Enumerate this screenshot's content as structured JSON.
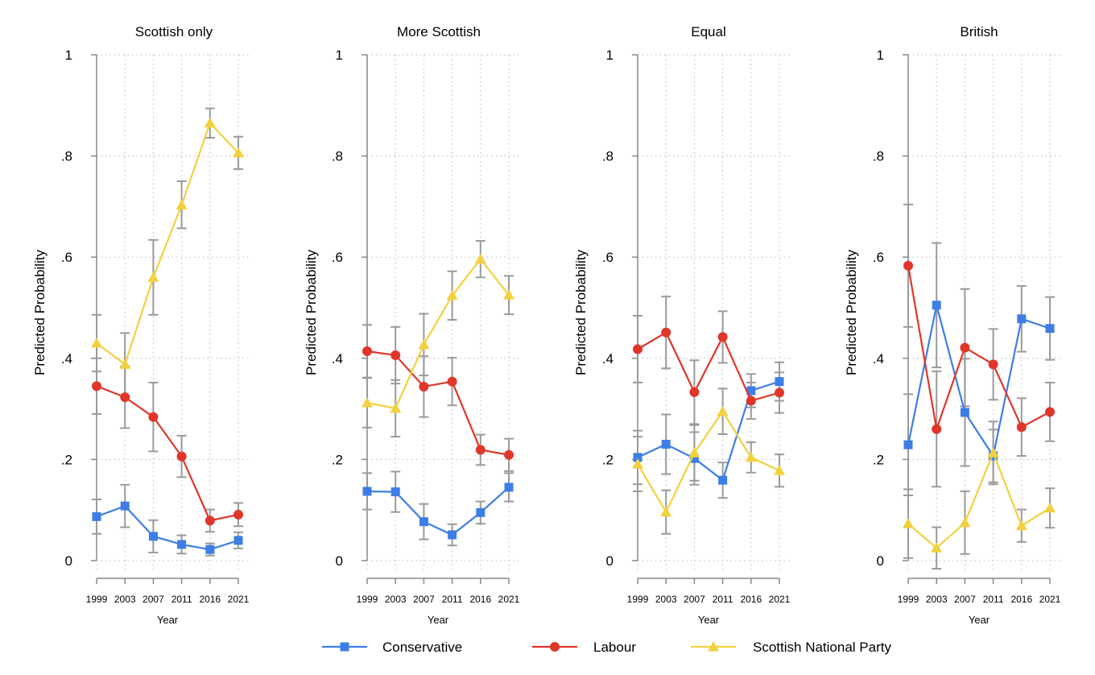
{
  "chart_data": {
    "type": "line",
    "x": [
      1999,
      2003,
      2007,
      2011,
      2016,
      2021
    ],
    "x_tick_labels": [
      "1999",
      "2003",
      "2007",
      "2011",
      "2016",
      "2021"
    ],
    "xlabel": "Year",
    "ylabel": "Predicted Probability",
    "ylim": [
      0,
      1
    ],
    "y_ticks": [
      0,
      0.2,
      0.4,
      0.6,
      0.8,
      1
    ],
    "y_tick_labels": [
      "0",
      ".2",
      ".4",
      ".6",
      ".8",
      "1"
    ],
    "grid": true,
    "error_bars": true,
    "series_styles": [
      {
        "name": "Conservative",
        "color": "#3d7ee6",
        "marker": "square"
      },
      {
        "name": "Labour",
        "color": "#e0362a",
        "marker": "circle"
      },
      {
        "name": "Scottish National Party",
        "color": "#f2d13f",
        "marker": "triangle"
      }
    ],
    "legend": {
      "position": "bottom",
      "entries": [
        "Conservative",
        "Labour",
        "Scottish National Party"
      ]
    },
    "panels": [
      {
        "title": "Scottish only",
        "series": [
          {
            "name": "Conservative",
            "values": [
              0.087,
              0.108,
              0.048,
              0.032,
              0.022,
              0.04
            ],
            "lower": [
              0.053,
              0.066,
              0.016,
              0.014,
              0.01,
              0.024
            ],
            "upper": [
              0.121,
              0.15,
              0.08,
              0.05,
              0.034,
              0.056
            ]
          },
          {
            "name": "Labour",
            "values": [
              0.345,
              0.323,
              0.284,
              0.206,
              0.079,
              0.091
            ],
            "lower": [
              0.29,
              0.262,
              0.216,
              0.165,
              0.057,
              0.068
            ],
            "upper": [
              0.4,
              0.384,
              0.352,
              0.247,
              0.101,
              0.114
            ]
          },
          {
            "name": "Scottish National Party",
            "values": [
              0.43,
              0.388,
              0.56,
              0.703,
              0.865,
              0.806
            ],
            "lower": [
              0.374,
              0.326,
              0.486,
              0.657,
              0.836,
              0.774
            ],
            "upper": [
              0.486,
              0.45,
              0.634,
              0.75,
              0.894,
              0.838
            ]
          }
        ]
      },
      {
        "title": "More Scottish",
        "series": [
          {
            "name": "Conservative",
            "values": [
              0.137,
              0.136,
              0.077,
              0.051,
              0.095,
              0.145
            ],
            "lower": [
              0.101,
              0.096,
              0.042,
              0.03,
              0.073,
              0.117
            ],
            "upper": [
              0.173,
              0.176,
              0.112,
              0.072,
              0.117,
              0.173
            ]
          },
          {
            "name": "Labour",
            "values": [
              0.414,
              0.406,
              0.344,
              0.354,
              0.219,
              0.209
            ],
            "lower": [
              0.362,
              0.35,
              0.284,
              0.307,
              0.189,
              0.177
            ],
            "upper": [
              0.466,
              0.462,
              0.404,
              0.401,
              0.249,
              0.241
            ]
          },
          {
            "name": "Scottish National Party",
            "values": [
              0.312,
              0.301,
              0.427,
              0.524,
              0.596,
              0.525
            ],
            "lower": [
              0.263,
              0.245,
              0.366,
              0.476,
              0.56,
              0.487
            ],
            "upper": [
              0.361,
              0.357,
              0.488,
              0.572,
              0.632,
              0.563
            ]
          }
        ]
      },
      {
        "title": "Equal",
        "series": [
          {
            "name": "Conservative",
            "values": [
              0.204,
              0.23,
              0.202,
              0.159,
              0.336,
              0.354
            ],
            "lower": [
              0.151,
              0.171,
              0.15,
              0.124,
              0.303,
              0.316
            ],
            "upper": [
              0.257,
              0.289,
              0.254,
              0.194,
              0.369,
              0.392
            ]
          },
          {
            "name": "Labour",
            "values": [
              0.418,
              0.451,
              0.333,
              0.442,
              0.316,
              0.332
            ],
            "lower": [
              0.352,
              0.38,
              0.27,
              0.391,
              0.28,
              0.292
            ],
            "upper": [
              0.484,
              0.522,
              0.396,
              0.493,
              0.352,
              0.372
            ]
          },
          {
            "name": "Scottish National Party",
            "values": [
              0.191,
              0.096,
              0.213,
              0.295,
              0.204,
              0.178
            ],
            "lower": [
              0.137,
              0.053,
              0.158,
              0.25,
              0.174,
              0.146
            ],
            "upper": [
              0.245,
              0.139,
              0.268,
              0.34,
              0.234,
              0.21
            ]
          }
        ]
      },
      {
        "title": "British",
        "series": [
          {
            "name": "Conservative",
            "values": [
              0.229,
              0.505,
              0.293,
              0.207,
              0.478,
              0.459
            ],
            "lower": [
              0.129,
              0.382,
              0.187,
              0.155,
              0.413,
              0.397
            ],
            "upper": [
              0.329,
              0.628,
              0.399,
              0.259,
              0.543,
              0.521
            ]
          },
          {
            "name": "Labour",
            "values": [
              0.583,
              0.26,
              0.421,
              0.388,
              0.264,
              0.294
            ],
            "lower": [
              0.462,
              0.146,
              0.305,
              0.318,
              0.207,
              0.236
            ],
            "upper": [
              0.704,
              0.374,
              0.537,
              0.458,
              0.321,
              0.352
            ]
          },
          {
            "name": "Scottish National Party",
            "values": [
              0.073,
              0.025,
              0.075,
              0.213,
              0.069,
              0.104
            ],
            "lower": [
              0.005,
              -0.016,
              0.013,
              0.151,
              0.037,
              0.065
            ],
            "upper": [
              0.141,
              0.066,
              0.137,
              0.275,
              0.101,
              0.143
            ]
          }
        ]
      }
    ]
  }
}
